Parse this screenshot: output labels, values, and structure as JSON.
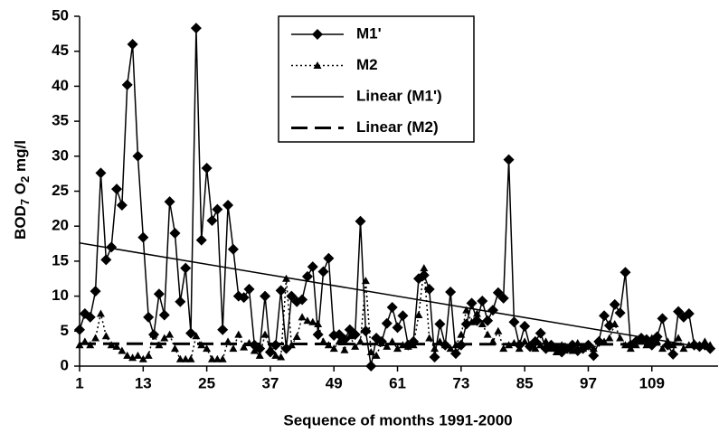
{
  "chart_data": {
    "type": "line",
    "xlabel": "Sequence of months 1991-2000",
    "ylabel_parts": [
      "BOD",
      "7",
      " O",
      "2",
      " mg/l"
    ],
    "xlim": [
      1,
      121.5
    ],
    "ylim": [
      0,
      50
    ],
    "xticks": [
      1,
      13,
      25,
      37,
      49,
      61,
      73,
      85,
      97,
      109
    ],
    "yticks": [
      0,
      5,
      10,
      15,
      20,
      25,
      30,
      35,
      40,
      45,
      50
    ],
    "grid": false,
    "x": [
      1,
      2,
      3,
      4,
      5,
      6,
      7,
      8,
      9,
      10,
      11,
      12,
      13,
      14,
      15,
      16,
      17,
      18,
      19,
      20,
      21,
      22,
      23,
      24,
      25,
      26,
      27,
      28,
      29,
      30,
      31,
      32,
      33,
      34,
      35,
      36,
      37,
      38,
      39,
      40,
      41,
      42,
      43,
      44,
      45,
      46,
      47,
      48,
      49,
      50,
      51,
      52,
      53,
      54,
      55,
      56,
      57,
      58,
      59,
      60,
      61,
      62,
      63,
      64,
      65,
      66,
      67,
      68,
      69,
      70,
      71,
      72,
      73,
      74,
      75,
      76,
      77,
      78,
      79,
      80,
      81,
      82,
      83,
      84,
      85,
      86,
      87,
      88,
      89,
      90,
      91,
      92,
      93,
      94,
      95,
      96,
      97,
      98,
      99,
      100,
      101,
      102,
      103,
      104,
      105,
      106,
      107,
      108,
      109,
      110,
      111,
      112,
      113,
      114,
      115,
      116,
      117,
      118,
      119,
      120
    ],
    "series": [
      {
        "name": "M1'",
        "color": "#000000",
        "line_style": "solid",
        "marker": "diamond",
        "values": [
          5.2,
          7.5,
          7,
          10.7,
          27.6,
          15.2,
          17,
          25.3,
          23,
          40.2,
          46,
          30,
          18.4,
          7,
          4.5,
          10.3,
          7.3,
          23.5,
          19,
          9.2,
          14,
          4.7,
          48.3,
          18,
          28.3,
          20.8,
          22.4,
          5.2,
          23,
          16.7,
          10,
          9.8,
          11,
          3,
          2.5,
          10,
          2,
          3,
          10.8,
          2.5,
          10,
          9.2,
          9.5,
          12.8,
          14.2,
          4.5,
          13.5,
          15.4,
          4.4,
          4.5,
          3.8,
          5.2,
          4.5,
          20.7,
          5,
          0,
          4,
          3.5,
          6.1,
          8.4,
          5.5,
          7.2,
          3,
          3.5,
          12.5,
          13,
          11,
          1.3,
          6,
          3,
          10.6,
          1.8,
          3,
          6,
          9,
          6.5,
          9.3,
          6.5,
          8,
          10.5,
          9.7,
          29.5,
          6.3,
          3,
          5.7,
          2.8,
          3.5,
          4.7,
          2.5,
          3,
          2.5,
          2,
          2.5,
          3,
          2.2,
          2.5,
          3,
          1.5,
          3.5,
          7.2,
          5.8,
          8.8,
          7.6,
          13.4,
          3,
          3.5,
          4,
          3.8,
          3,
          4.2,
          6.8,
          3,
          1.7,
          7.8,
          7,
          7.5,
          3,
          2.8,
          3,
          2.5
        ]
      },
      {
        "name": "M2",
        "color": "#000000",
        "line_style": "dotted",
        "marker": "triangle",
        "values": [
          3,
          3.5,
          3,
          4,
          7.5,
          4.3,
          3,
          2.8,
          2.2,
          1.5,
          1.2,
          1.5,
          1,
          1.5,
          4.5,
          3,
          4,
          4.5,
          2.5,
          1,
          1,
          1,
          4.3,
          3,
          2.5,
          1,
          1,
          1,
          3.5,
          2.5,
          4.5,
          2.7,
          3.3,
          2.2,
          1.5,
          4.5,
          2.5,
          1.5,
          1.3,
          12.5,
          3,
          4.2,
          7,
          6.5,
          6.3,
          6,
          3.5,
          3,
          2.5,
          3.5,
          2.3,
          4.3,
          2.8,
          3.5,
          12.2,
          2,
          1.5,
          3.3,
          2.8,
          3.5,
          2.5,
          3,
          2.8,
          3,
          7.3,
          14,
          4,
          2.5,
          3.5,
          3,
          2.5,
          3,
          4.5,
          8,
          6.3,
          7.5,
          6,
          4.5,
          3.5,
          5,
          2.5,
          3,
          3.3,
          2.5,
          3.5,
          3,
          2.5,
          3,
          3.5,
          2.5,
          2,
          3,
          2.5,
          2.2,
          3.3,
          2.5,
          3,
          2.5,
          3.5,
          3.5,
          4,
          6,
          4,
          3,
          2.5,
          3,
          3.5,
          3,
          4,
          3.5,
          2.5,
          3.5,
          3,
          4,
          2.5,
          3,
          3.3,
          3,
          3.5,
          3
        ]
      },
      {
        "name": "Linear (M1')",
        "color": "#000000",
        "line_style": "solid",
        "marker": null,
        "x": [
          1,
          120
        ],
        "values": [
          17.6,
          2.5
        ]
      },
      {
        "name": "Linear (M2)",
        "color": "#000000",
        "line_style": "dashed",
        "marker": null,
        "x": [
          1,
          120
        ],
        "values": [
          3.2,
          3.1
        ]
      }
    ]
  }
}
